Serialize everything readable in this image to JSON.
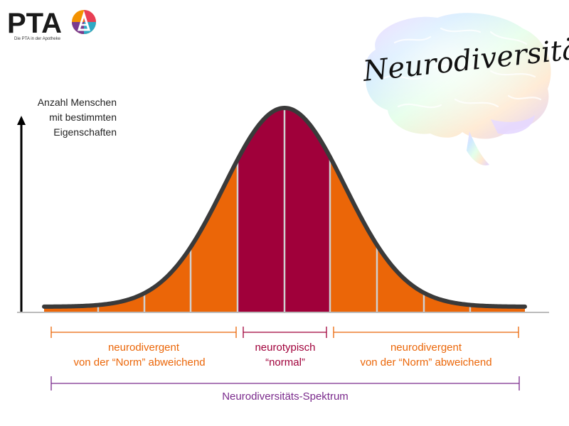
{
  "logo": {
    "text": "PTA",
    "tagline": "Die PTA in der Apotheke"
  },
  "title": "Neurodiversität",
  "y_axis_label": [
    "Anzahl Menschen",
    "mit bestimmten",
    "Eigenschaften"
  ],
  "segments": {
    "left": [
      "neurodivergent",
      "von der “Norm” abweichend"
    ],
    "middle": [
      "neurotypisch",
      "“normal”"
    ],
    "right": [
      "neurodivergent",
      "von der “Norm” abweichend"
    ]
  },
  "spectrum_label": "Neurodiversitäts-Spektrum",
  "colors": {
    "divergent": "#EB6608",
    "typical": "#A0003A",
    "curve": "#3A3A3A",
    "bracket_orange": "#EB6608",
    "bracket_purple": "#7A2A8C",
    "baseline": "#BBBBBB",
    "divider": "#D0D0D0"
  },
  "chart_data": {
    "type": "area",
    "distribution": "normal",
    "bands": 10,
    "highlighted_bands": [
      4,
      5
    ]
  }
}
